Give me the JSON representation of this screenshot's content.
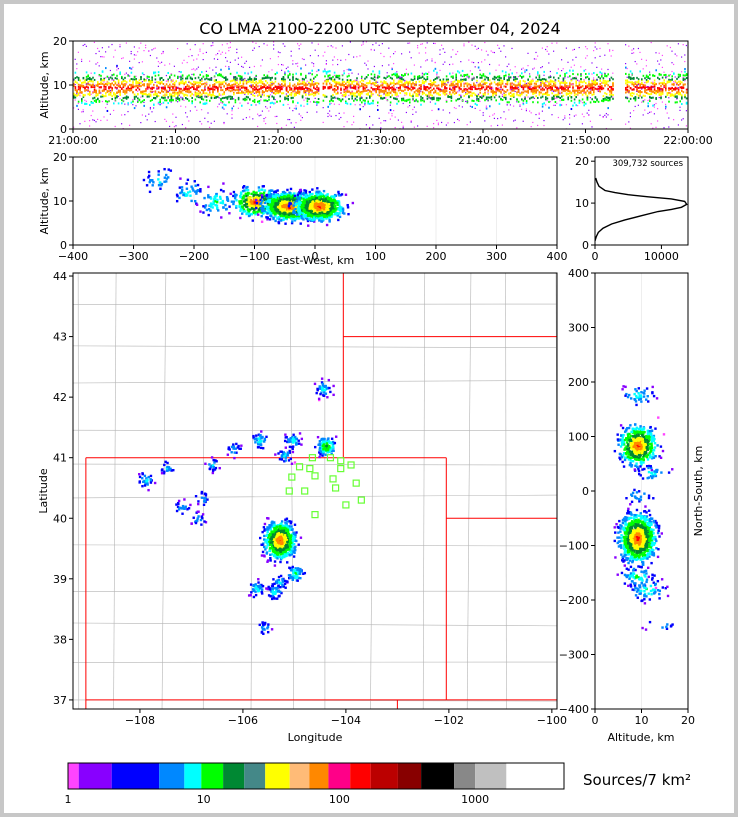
{
  "title": "CO LMA 2100-2200 UTC September 04, 2024",
  "chart_data": [
    {
      "panel": "time-altitude",
      "type": "heatmap",
      "ylabel": "Altitude, km",
      "yticks": [
        0,
        10,
        20
      ],
      "ylim": [
        0,
        20
      ],
      "xtick_labels": [
        "21:00:00",
        "21:10:00",
        "21:20:00",
        "21:30:00",
        "21:40:00",
        "21:50:00",
        "22:00:00"
      ],
      "xlim_minutes": [
        0,
        60
      ],
      "data_gaps_minutes": [
        [
          23.9,
          24.2
        ],
        [
          52.7,
          53.8
        ]
      ],
      "core_altitude_km": 9.5
    },
    {
      "panel": "east-west-altitude",
      "type": "heatmap",
      "xlabel": "East-West, km",
      "ylabel": "Altitude, km",
      "xticks": [
        -400,
        -300,
        -200,
        -100,
        0,
        100,
        200,
        300,
        400
      ],
      "xlim": [
        -400,
        400
      ],
      "yticks": [
        0,
        10,
        20
      ],
      "ylim": [
        0,
        20
      ],
      "clusters": [
        {
          "x": -260,
          "z": 15,
          "n": 30
        },
        {
          "x": -210,
          "z": 12,
          "n": 40
        },
        {
          "x": -165,
          "z": 10,
          "n": 60
        },
        {
          "x": -100,
          "z": 10,
          "n": 300
        },
        {
          "x": -45,
          "z": 9,
          "n": 800
        },
        {
          "x": 5,
          "z": 9,
          "n": 700
        }
      ]
    },
    {
      "panel": "altitude-histogram",
      "type": "line",
      "annotation": "309,732 sources",
      "xticks": [
        0,
        10000
      ],
      "xlim": [
        0,
        14000
      ],
      "yticks": [
        0,
        10,
        20
      ],
      "ylim": [
        0,
        21
      ],
      "x": [
        0,
        200,
        500,
        1200,
        2500,
        4500,
        7000,
        9500,
        11500,
        13000,
        13800,
        13500,
        11500,
        8000,
        5000,
        3000,
        1500,
        600,
        300,
        100
      ],
      "y": [
        1,
        2,
        3,
        4,
        5,
        6,
        7,
        8,
        8.5,
        9,
        9.7,
        10.4,
        11,
        11.5,
        12,
        12.5,
        13,
        14,
        15,
        16
      ]
    },
    {
      "panel": "plan-view",
      "type": "heatmap",
      "xlabel": "Longitude",
      "ylabel": "Latitude",
      "xticks": [
        -108,
        -106,
        -104,
        -102,
        -100
      ],
      "xlim": [
        -109.3,
        -99.9
      ],
      "yticks": [
        37,
        38,
        39,
        40,
        41,
        42,
        43,
        44
      ],
      "ylim": [
        36.85,
        44.05
      ],
      "state_boundary_color": "#ff0000",
      "county_boundary_color": "#b4b4b4",
      "station_color": "#66ff33",
      "stations": [
        {
          "lon": -104.65,
          "lat": 41.0
        },
        {
          "lon": -104.3,
          "lat": 41.0
        },
        {
          "lon": -104.1,
          "lat": 40.95
        },
        {
          "lon": -103.9,
          "lat": 40.88
        },
        {
          "lon": -104.9,
          "lat": 40.85
        },
        {
          "lon": -104.7,
          "lat": 40.82
        },
        {
          "lon": -104.1,
          "lat": 40.82
        },
        {
          "lon": -105.05,
          "lat": 40.68
        },
        {
          "lon": -104.6,
          "lat": 40.7
        },
        {
          "lon": -104.25,
          "lat": 40.65
        },
        {
          "lon": -103.8,
          "lat": 40.58
        },
        {
          "lon": -105.1,
          "lat": 40.45
        },
        {
          "lon": -104.8,
          "lat": 40.45
        },
        {
          "lon": -104.2,
          "lat": 40.5
        },
        {
          "lon": -103.7,
          "lat": 40.3
        },
        {
          "lon": -104.0,
          "lat": 40.22
        },
        {
          "lon": -104.6,
          "lat": 40.06
        }
      ],
      "storm_cells": [
        {
          "lon": -104.45,
          "lat": 42.15,
          "n": 40
        },
        {
          "lon": -104.4,
          "lat": 41.2,
          "n": 100
        },
        {
          "lon": -105.05,
          "lat": 41.3,
          "n": 40
        },
        {
          "lon": -105.7,
          "lat": 41.3,
          "n": 40
        },
        {
          "lon": -106.2,
          "lat": 41.15,
          "n": 20
        },
        {
          "lon": -105.2,
          "lat": 41.05,
          "n": 30
        },
        {
          "lon": -106.6,
          "lat": 40.9,
          "n": 20
        },
        {
          "lon": -107.5,
          "lat": 40.85,
          "n": 20
        },
        {
          "lon": -107.9,
          "lat": 40.65,
          "n": 30
        },
        {
          "lon": -106.8,
          "lat": 40.35,
          "n": 20
        },
        {
          "lon": -107.2,
          "lat": 40.2,
          "n": 20
        },
        {
          "lon": -106.9,
          "lat": 40.0,
          "n": 20
        },
        {
          "lon": -105.3,
          "lat": 39.65,
          "n": 700
        },
        {
          "lon": -105.0,
          "lat": 39.1,
          "n": 60
        },
        {
          "lon": -105.3,
          "lat": 38.95,
          "n": 30
        },
        {
          "lon": -105.75,
          "lat": 38.85,
          "n": 40
        },
        {
          "lon": -105.4,
          "lat": 38.8,
          "n": 40
        },
        {
          "lon": -105.6,
          "lat": 38.2,
          "n": 20
        }
      ]
    },
    {
      "panel": "north-south-altitude",
      "type": "heatmap",
      "xlabel": "Altitude, km",
      "ylabel": "North-South, km",
      "xticks": [
        0,
        10,
        20
      ],
      "xlim": [
        0,
        20
      ],
      "yticks": [
        -400,
        -300,
        -200,
        -100,
        0,
        100,
        200,
        300,
        400
      ],
      "ylim": [
        -400,
        400
      ],
      "clusters": [
        {
          "y": 178,
          "z": 9,
          "n": 40
        },
        {
          "y": 85,
          "z": 9,
          "n": 500
        },
        {
          "y": 35,
          "z": 12,
          "n": 30
        },
        {
          "y": -8,
          "z": 9,
          "n": 20
        },
        {
          "y": -85,
          "z": 9,
          "n": 900
        },
        {
          "y": -155,
          "z": 9,
          "n": 60
        },
        {
          "y": -180,
          "z": 11,
          "n": 60
        },
        {
          "y": -245,
          "z": 14,
          "n": 10
        }
      ]
    }
  ],
  "colorbar": {
    "label": "Sources/7 km²",
    "ticks": [
      1,
      10,
      100,
      1000
    ],
    "colors": [
      "#ff44ff",
      "#8800ff",
      "#0000ff",
      "#0088ff",
      "#00ffff",
      "#00ff00",
      "#008833",
      "#448888",
      "#ffff00",
      "#ffbb77",
      "#ff8800",
      "#ff0088",
      "#ff0000",
      "#bb0000",
      "#880000",
      "#000000",
      "#888888",
      "#c0c0c0",
      "#ffffff"
    ]
  }
}
